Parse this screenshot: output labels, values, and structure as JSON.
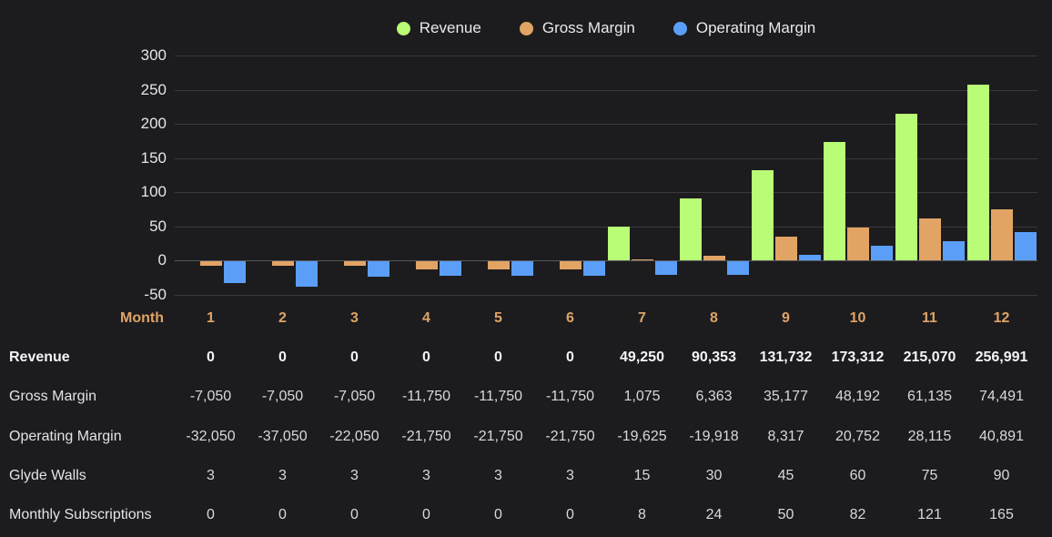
{
  "colors": {
    "background": "#1c1c1e",
    "revenue": "#b9fc75",
    "gross_margin": "#e2a465",
    "operating_margin": "#5b9ef7",
    "gridline": "#39393c",
    "zero_line": "#58585c",
    "axis_text": "#e6e6e8",
    "month_text": "#dfa366",
    "value_text": "#d9d9db"
  },
  "legend": {
    "items": [
      {
        "label": "Revenue",
        "color": "#b9fc75"
      },
      {
        "label": "Gross Margin",
        "color": "#e2a465"
      },
      {
        "label": "Operating Margin",
        "color": "#5b9ef7"
      }
    ]
  },
  "chart_data": {
    "type": "bar",
    "title": "",
    "xlabel": "Month",
    "ylabel": "",
    "categories": [
      1,
      2,
      3,
      4,
      5,
      6,
      7,
      8,
      9,
      10,
      11,
      12
    ],
    "series": [
      {
        "name": "Revenue",
        "color": "#b9fc75",
        "values": [
          0,
          0,
          0,
          0,
          0,
          0,
          49250,
          90353,
          131732,
          173312,
          215070,
          256991
        ]
      },
      {
        "name": "Gross Margin",
        "color": "#e2a465",
        "values": [
          -7050,
          -7050,
          -7050,
          -11750,
          -11750,
          -11750,
          1075,
          6363,
          35177,
          48192,
          61135,
          74491
        ]
      },
      {
        "name": "Operating Margin",
        "color": "#5b9ef7",
        "values": [
          -32050,
          -37050,
          -22050,
          -21750,
          -21750,
          -21750,
          -19625,
          -19918,
          8317,
          20752,
          28115,
          40891
        ]
      }
    ],
    "y_ticks": [
      300,
      250,
      200,
      150,
      100,
      50,
      0,
      -50
    ],
    "ylim": [
      -50,
      300
    ],
    "y_unit": "thousands (bars plot value/1000)",
    "grid": true,
    "legend_position": "top-center"
  },
  "table": {
    "month_label": "Month",
    "months": [
      "1",
      "2",
      "3",
      "4",
      "5",
      "6",
      "7",
      "8",
      "9",
      "10",
      "11",
      "12"
    ],
    "rows": [
      {
        "label": "Revenue",
        "bold": true,
        "values": [
          "0",
          "0",
          "0",
          "0",
          "0",
          "0",
          "49,250",
          "90,353",
          "131,732",
          "173,312",
          "215,070",
          "256,991"
        ]
      },
      {
        "label": "Gross Margin",
        "bold": false,
        "values": [
          "-7,050",
          "-7,050",
          "-7,050",
          "-11,750",
          "-11,750",
          "-11,750",
          "1,075",
          "6,363",
          "35,177",
          "48,192",
          "61,135",
          "74,491"
        ]
      },
      {
        "label": "Operating Margin",
        "bold": false,
        "values": [
          "-32,050",
          "-37,050",
          "-22,050",
          "-21,750",
          "-21,750",
          "-21,750",
          "-19,625",
          "-19,918",
          "8,317",
          "20,752",
          "28,115",
          "40,891"
        ]
      },
      {
        "label": "Glyde Walls",
        "bold": false,
        "values": [
          "3",
          "3",
          "3",
          "3",
          "3",
          "3",
          "15",
          "30",
          "45",
          "60",
          "75",
          "90"
        ]
      },
      {
        "label": "Monthly Subscriptions",
        "bold": false,
        "values": [
          "0",
          "0",
          "0",
          "0",
          "0",
          "0",
          "8",
          "24",
          "50",
          "82",
          "121",
          "165"
        ]
      }
    ]
  }
}
